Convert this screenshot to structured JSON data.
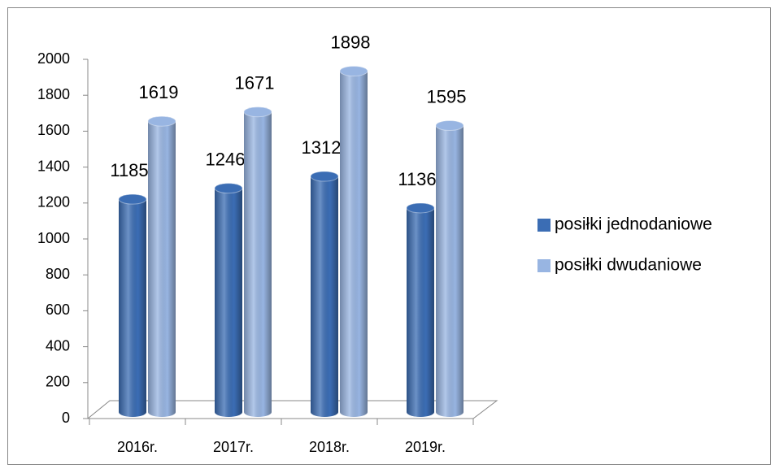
{
  "chart_data": {
    "type": "bar",
    "categories": [
      "2016r.",
      "2017r.",
      "2018r.",
      "2019r."
    ],
    "series": [
      {
        "name": "posiłki jednodaniowe",
        "color": "#3b6db4",
        "values": [
          1185,
          1246,
          1312,
          1136
        ]
      },
      {
        "name": "posiłki dwudaniowe",
        "color": "#98b5e2",
        "values": [
          1619,
          1671,
          1898,
          1595
        ]
      }
    ],
    "ylim": [
      0,
      2000
    ],
    "yticks": [
      0,
      200,
      400,
      600,
      800,
      1000,
      1200,
      1400,
      1600,
      1800,
      2000
    ],
    "legend": "right"
  }
}
